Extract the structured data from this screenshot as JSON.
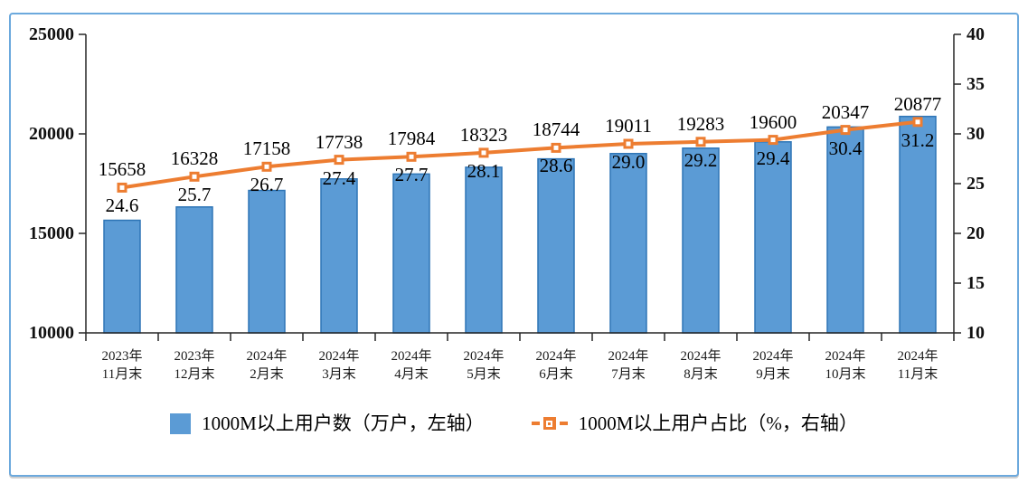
{
  "legend": {
    "bar_label": "1000M以上用户数（万户，左轴）",
    "line_label": "1000M以上用户占比（%，右轴）"
  },
  "colors": {
    "bar_fill": "#5B9BD5",
    "bar_border": "#2E75B6",
    "line": "#ED7D31",
    "marker_center": "#FFFFFF",
    "frame_border": "#6CA9DD",
    "axis": "#262626",
    "text": "#000000"
  },
  "chart_data": {
    "type": "bar",
    "subtype": "bar-line-combo",
    "grid": false,
    "legend_position": "bottom",
    "categories": [
      [
        "2023年",
        "11月末"
      ],
      [
        "2023年",
        "12月末"
      ],
      [
        "2024年",
        "2月末"
      ],
      [
        "2024年",
        "3月末"
      ],
      [
        "2024年",
        "4月末"
      ],
      [
        "2024年",
        "5月末"
      ],
      [
        "2024年",
        "6月末"
      ],
      [
        "2024年",
        "7月末"
      ],
      [
        "2024年",
        "8月末"
      ],
      [
        "2024年",
        "9月末"
      ],
      [
        "2024年",
        "10月末"
      ],
      [
        "2024年",
        "11月末"
      ]
    ],
    "series": [
      {
        "name": "1000M以上用户数（万户，左轴）",
        "type": "bar",
        "axis": "left",
        "values": [
          15658,
          16328,
          17158,
          17738,
          17984,
          18323,
          18744,
          19011,
          19283,
          19600,
          20347,
          20877
        ],
        "labels": [
          "15658",
          "16328",
          "17158",
          "17738",
          "17984",
          "18323",
          "18744",
          "19011",
          "19283",
          "19600",
          "20347",
          "20877"
        ]
      },
      {
        "name": "1000M以上用户占比（%，右轴）",
        "type": "line",
        "axis": "right",
        "values": [
          24.6,
          25.7,
          26.7,
          27.4,
          27.7,
          28.1,
          28.6,
          29.0,
          29.2,
          29.4,
          30.4,
          31.2
        ],
        "labels": [
          "24.6",
          "25.7",
          "26.7",
          "27.4",
          "27.7",
          "28.1",
          "28.6",
          "29.0",
          "29.2",
          "29.4",
          "30.4",
          "31.2"
        ]
      }
    ],
    "left_axis": {
      "min": 10000,
      "max": 25000,
      "step": 5000,
      "tick_labels": [
        "25000",
        "20000",
        "15000",
        "10000"
      ]
    },
    "right_axis": {
      "min": 10,
      "max": 40,
      "step": 5,
      "tick_labels": [
        "40",
        "35",
        "30",
        "25",
        "20",
        "15",
        "10"
      ]
    }
  }
}
